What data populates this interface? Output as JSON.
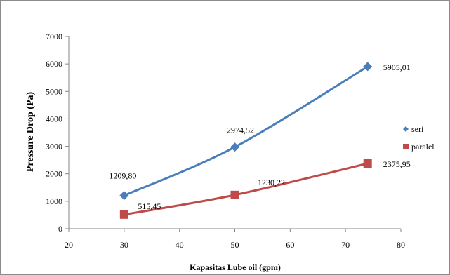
{
  "chart_data": {
    "type": "scatter",
    "title": "",
    "xlabel": "Kapasitas Lube oil  (gpm)",
    "ylabel": "Pressure Drop (Pa)",
    "xlim": [
      20,
      80
    ],
    "ylim": [
      0,
      7000
    ],
    "xticks": [
      20,
      30,
      40,
      50,
      60,
      70,
      80
    ],
    "yticks": [
      0,
      1000,
      2000,
      3000,
      4000,
      5000,
      6000,
      7000
    ],
    "grid": false,
    "legend_position": "right",
    "smooth_lines": true,
    "series": [
      {
        "name": "seri",
        "color": "#4a7ebb",
        "marker": "diamond",
        "x": [
          30,
          50,
          74
        ],
        "y": [
          1209.8,
          2974.52,
          5905.01
        ],
        "labels": [
          "1209,80",
          "2974,52",
          "5905,01"
        ]
      },
      {
        "name": "paralel",
        "color": "#be4b48",
        "marker": "square",
        "x": [
          30,
          50,
          74
        ],
        "y": [
          515.45,
          1230.22,
          2375.95
        ],
        "labels": [
          "515,45",
          "1230,22",
          "2375,95"
        ]
      }
    ]
  }
}
